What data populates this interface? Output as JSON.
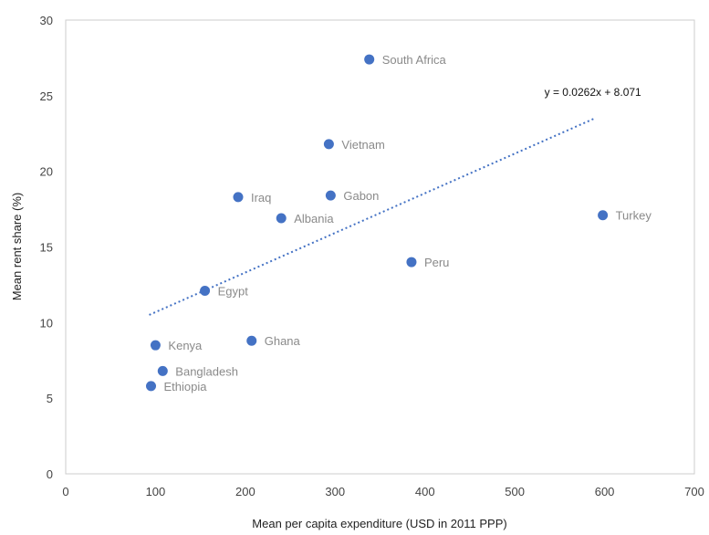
{
  "chart_data": {
    "type": "scatter",
    "xlabel": "Mean per capita expenditure (USD in 2011 PPP)",
    "ylabel": "Mean rent share (%)",
    "xlim": [
      0,
      700
    ],
    "ylim": [
      0,
      30
    ],
    "x_ticks": [
      0,
      100,
      200,
      300,
      400,
      500,
      600,
      700
    ],
    "y_ticks": [
      0,
      5,
      10,
      15,
      20,
      25,
      30
    ],
    "grid": false,
    "point_color": "#4472c4",
    "label_color": "#8a8a8a",
    "points": [
      {
        "label": "South Africa",
        "x": 338,
        "y": 27.4
      },
      {
        "label": "Vietnam",
        "x": 293,
        "y": 21.8
      },
      {
        "label": "Iraq",
        "x": 192,
        "y": 18.3
      },
      {
        "label": "Gabon",
        "x": 295,
        "y": 18.4
      },
      {
        "label": "Albania",
        "x": 240,
        "y": 16.9
      },
      {
        "label": "Turkey",
        "x": 598,
        "y": 17.1
      },
      {
        "label": "Peru",
        "x": 385,
        "y": 14.0
      },
      {
        "label": "Egypt",
        "x": 155,
        "y": 12.1
      },
      {
        "label": "Ghana",
        "x": 207,
        "y": 8.8
      },
      {
        "label": "Kenya",
        "x": 100,
        "y": 8.5
      },
      {
        "label": "Bangladesh",
        "x": 108,
        "y": 6.8
      },
      {
        "label": "Ethiopia",
        "x": 95,
        "y": 5.8
      }
    ],
    "trendline": {
      "equation": "y = 0.0262x + 8.071",
      "slope": 0.0262,
      "intercept": 8.071,
      "x_range": [
        93,
        590
      ],
      "style": "dotted",
      "color": "#4472c4"
    }
  }
}
